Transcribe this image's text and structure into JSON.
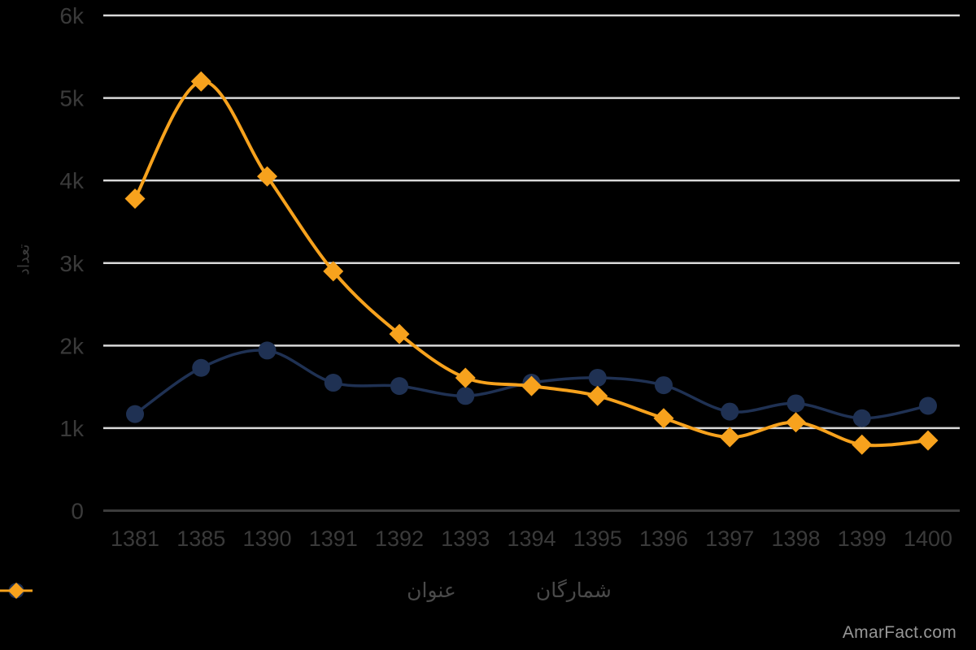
{
  "background_color": "#000000",
  "watermark": "AmarFact.com",
  "chart_data": {
    "type": "line",
    "title": "",
    "xlabel": "",
    "ylabel": "تعداد",
    "ylim": [
      0,
      6000
    ],
    "yticks": [
      {
        "value": 0,
        "label": "0"
      },
      {
        "value": 1000,
        "label": "1k"
      },
      {
        "value": 2000,
        "label": "2k"
      },
      {
        "value": 3000,
        "label": "3k"
      },
      {
        "value": 4000,
        "label": "4k"
      },
      {
        "value": 5000,
        "label": "5k"
      },
      {
        "value": 6000,
        "label": "6k"
      }
    ],
    "grid": "horizontal-only",
    "legend_position": "bottom",
    "categories": [
      "1381",
      "1385",
      "1390",
      "1391",
      "1392",
      "1393",
      "1394",
      "1395",
      "1396",
      "1397",
      "1398",
      "1399",
      "1400"
    ],
    "series": [
      {
        "name": "عنوان",
        "marker": "circle",
        "color": "#1F3153",
        "values": [
          1170,
          1730,
          1940,
          1550,
          1510,
          1390,
          1550,
          1610,
          1520,
          1200,
          1300,
          1120,
          1270
        ]
      },
      {
        "name": "شمارگان",
        "marker": "diamond",
        "color": "#F7A21D",
        "values": [
          3780,
          5200,
          4050,
          2900,
          2140,
          1610,
          1510,
          1390,
          1120,
          890,
          1070,
          800,
          850
        ]
      }
    ],
    "colors": {
      "gridline": "#D9D9D9",
      "zero_line": "#3C3C3C",
      "tick_text": "#3A3A3A",
      "legend_text": "#4A4A4A",
      "watermark_text": "#969696"
    }
  }
}
